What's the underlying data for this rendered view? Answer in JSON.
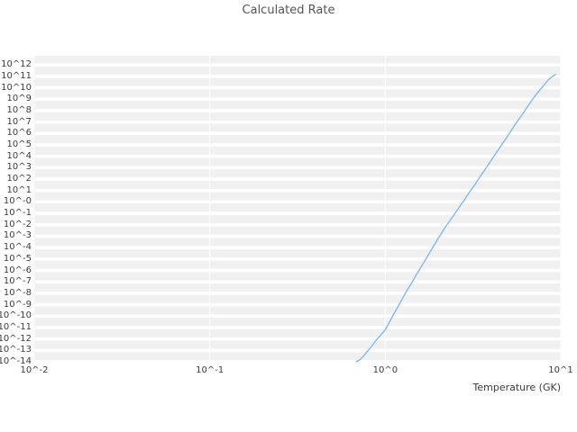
{
  "chart_data": {
    "type": "line",
    "title": "Calculated Rate",
    "xlabel": "Temperature (GK)",
    "ylabel": "",
    "x_scale": "log",
    "y_scale": "log",
    "xlim_exp": [
      -2,
      1
    ],
    "ylim_exp": [
      -14,
      12.8
    ],
    "grid": true,
    "legend": false,
    "plot_bg_color": "#f0f0f0",
    "grid_color": "#ffffff",
    "line_color": "#7cb5ec",
    "x_ticks": [
      {
        "exp": -2,
        "label": "10^-2"
      },
      {
        "exp": -1,
        "label": "10^-1"
      },
      {
        "exp": 0,
        "label": "10^0"
      },
      {
        "exp": 1,
        "label": "10^1"
      }
    ],
    "y_ticks": [
      {
        "exp": 12,
        "label": "10^12"
      },
      {
        "exp": 11,
        "label": "10^11"
      },
      {
        "exp": 10,
        "label": "10^10"
      },
      {
        "exp": 9,
        "label": "10^9"
      },
      {
        "exp": 8,
        "label": "10^8"
      },
      {
        "exp": 7,
        "label": "10^7"
      },
      {
        "exp": 6,
        "label": "10^6"
      },
      {
        "exp": 5,
        "label": "10^5"
      },
      {
        "exp": 4,
        "label": "10^4"
      },
      {
        "exp": 3,
        "label": "10^3"
      },
      {
        "exp": 2,
        "label": "10^2"
      },
      {
        "exp": 1,
        "label": "10^1"
      },
      {
        "exp": 0,
        "label": "10^-0"
      },
      {
        "exp": -1,
        "label": "10^-1"
      },
      {
        "exp": -2,
        "label": "10^-2"
      },
      {
        "exp": -3,
        "label": "10^-3"
      },
      {
        "exp": -4,
        "label": "10^-4"
      },
      {
        "exp": -5,
        "label": "10^-5"
      },
      {
        "exp": -6,
        "label": "10^-6"
      },
      {
        "exp": -7,
        "label": "10^-7"
      },
      {
        "exp": -8,
        "label": "10^-8"
      },
      {
        "exp": -9,
        "label": "10^-9"
      },
      {
        "exp": -10,
        "label": "10^-10"
      },
      {
        "exp": -11,
        "label": "10^-11"
      },
      {
        "exp": -12,
        "label": "10^-12"
      },
      {
        "exp": -13,
        "label": "10^-13"
      },
      {
        "exp": -14,
        "label": "10^-14"
      }
    ],
    "series": [
      {
        "name": "calculated-rate",
        "x_GK": [
          0.68,
          0.72,
          0.76,
          0.8,
          0.85,
          0.9,
          0.95,
          1.0,
          1.05,
          1.1,
          1.2,
          1.3,
          1.4,
          1.5,
          1.6,
          1.8,
          2.0,
          2.2,
          2.4,
          2.6,
          2.8,
          3.0,
          3.2,
          3.5,
          3.8,
          4.2,
          4.6,
          5.0,
          5.5,
          6.0,
          6.5,
          7.0,
          7.5,
          8.0,
          8.5,
          9.0,
          9.4
        ],
        "log10_rate": [
          -14.0,
          -13.8,
          -13.4,
          -13.0,
          -12.5,
          -12.0,
          -11.6,
          -11.2,
          -10.6,
          -10.0,
          -9.0,
          -8.0,
          -7.2,
          -6.4,
          -5.7,
          -4.4,
          -3.2,
          -2.2,
          -1.4,
          -0.6,
          0.1,
          0.8,
          1.4,
          2.3,
          3.1,
          4.1,
          5.0,
          5.8,
          6.8,
          7.6,
          8.4,
          9.1,
          9.7,
          10.2,
          10.7,
          11.0,
          11.2
        ]
      }
    ]
  }
}
